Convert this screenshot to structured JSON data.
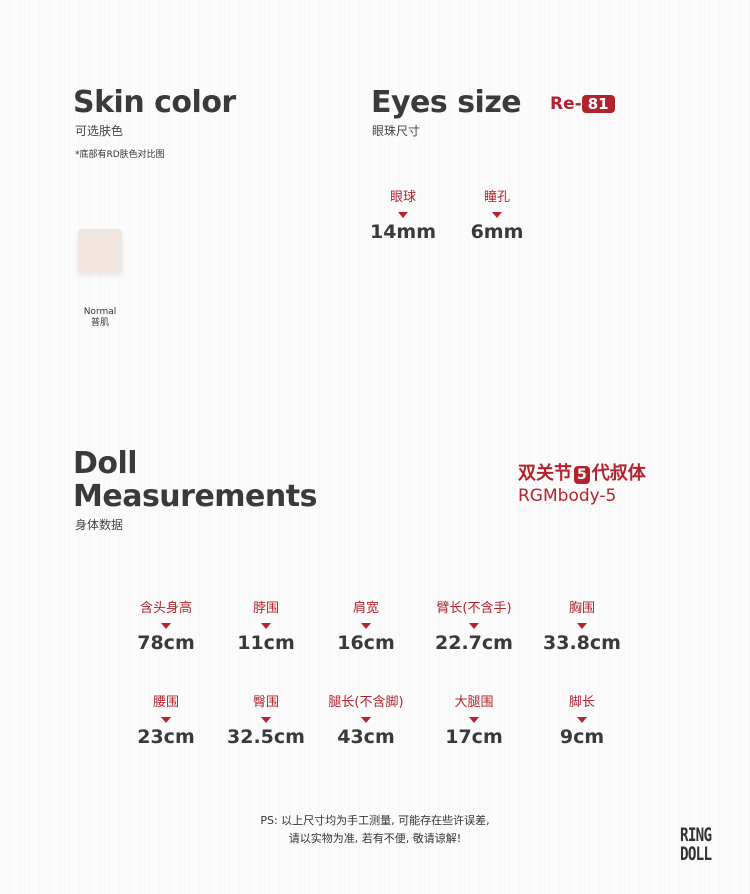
{
  "skin": {
    "title": "Skin color",
    "subtitle": "可选肤色",
    "note": "*底部有RD肤色对比图",
    "swatches": [
      {
        "name_en": "Normal",
        "name_cn": "普肌",
        "color": "#f2e4df"
      }
    ]
  },
  "eyes": {
    "title": "Eyes size",
    "subtitle": "眼珠尺寸",
    "code_prefix": "Re-",
    "code_number": "81",
    "items": [
      {
        "label": "眼球",
        "value": "14mm"
      },
      {
        "label": "瞳孔",
        "value": "6mm"
      }
    ]
  },
  "doll": {
    "title_line1": "Doll",
    "title_line2": "Measurements",
    "subtitle": "身体数据",
    "body_name_pre": "双关节",
    "body_name_num": "5",
    "body_name_post": "代叔体",
    "body_code": "RGMbody-5",
    "measurements": [
      {
        "label": "含头身高",
        "value": "78cm"
      },
      {
        "label": "脖围",
        "value": "11cm"
      },
      {
        "label": "肩宽",
        "value": "16cm"
      },
      {
        "label": "臂长(不含手)",
        "value": "22.7cm"
      },
      {
        "label": "胸围",
        "value": "33.8cm"
      },
      {
        "label": "腰围",
        "value": "23cm"
      },
      {
        "label": "臀围",
        "value": "32.5cm"
      },
      {
        "label": "腿长(不含脚)",
        "value": "43cm"
      },
      {
        "label": "大腿围",
        "value": "17cm"
      },
      {
        "label": "脚长",
        "value": "9cm"
      }
    ]
  },
  "footer": {
    "ps_line1": "PS: 以上尺寸均为手工测量, 可能存在些许误差,",
    "ps_line2": "请以实物为准, 若有不便, 敬请谅解!",
    "logo_line1": "RING",
    "logo_line2": "DOLL"
  },
  "colors": {
    "accent": "#b3232d",
    "text": "#3a3a3a"
  }
}
